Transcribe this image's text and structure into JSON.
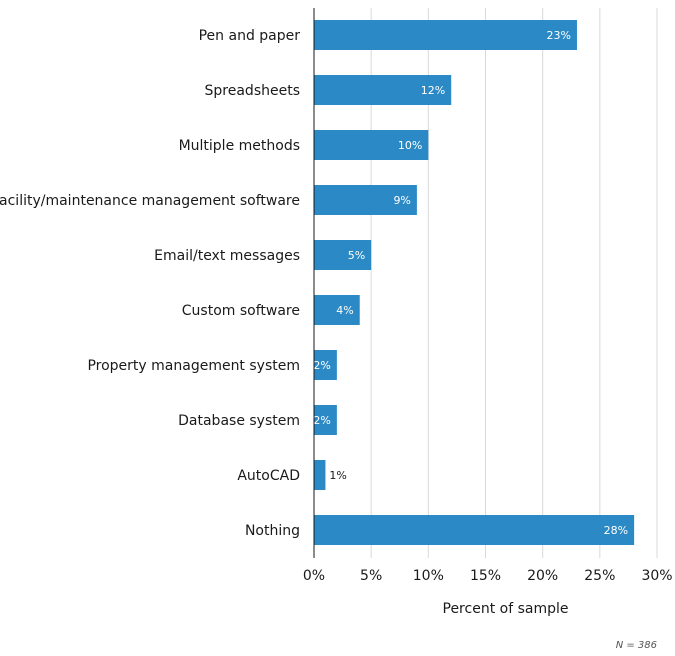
{
  "chart_data": {
    "type": "bar",
    "orientation": "horizontal",
    "categories": [
      "Pen and paper",
      "Spreadsheets",
      "Multiple methods",
      "Facility/maintenance management software",
      "Email/text messages",
      "Custom software",
      "Property management system",
      "Database system",
      "AutoCAD",
      "Nothing"
    ],
    "values": [
      23,
      12,
      10,
      9,
      5,
      4,
      2,
      2,
      1,
      28
    ],
    "value_labels": [
      "23%",
      "12%",
      "10%",
      "9%",
      "5%",
      "4%",
      "2%",
      "2%",
      "1%",
      "28%"
    ],
    "xlim": [
      0,
      30
    ],
    "xticks": [
      0,
      5,
      10,
      15,
      20,
      25,
      30
    ],
    "xtick_labels": [
      "0%",
      "5%",
      "10%",
      "15%",
      "20%",
      "25%",
      "30%"
    ],
    "xlabel": "Percent of sample",
    "ylabel": "",
    "title": "",
    "grid": "vertical",
    "legend": "none"
  },
  "footnote": "N = 386",
  "colors": {
    "bar": "#2b8ac6",
    "grid": "#d9d9d9",
    "axis": "#1a1a1a",
    "label_inside": "#ffffff",
    "label_outside": "#1a1a1a"
  }
}
